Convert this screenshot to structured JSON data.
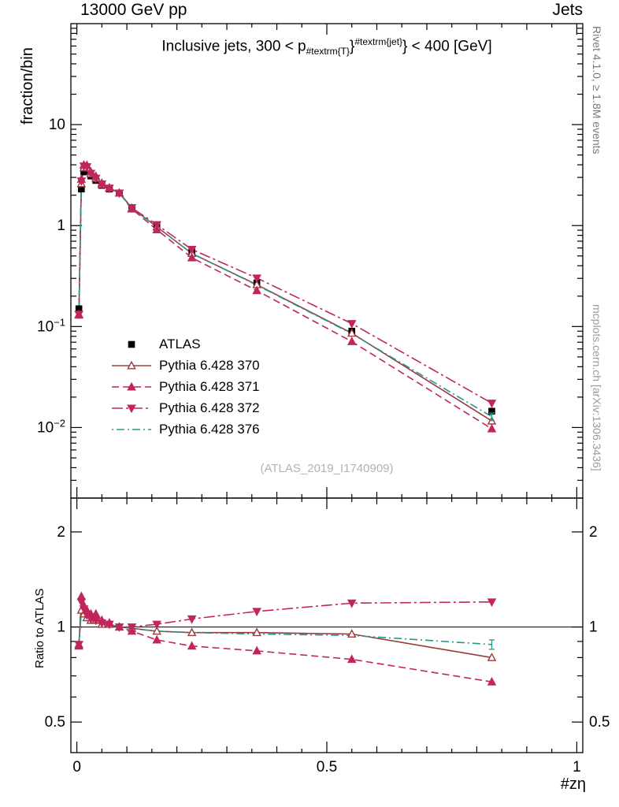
{
  "header": {
    "left": "13000 GeV pp",
    "right": "Jets"
  },
  "title": {
    "prefix": "Inclusive jets, 300 < p",
    "sub": "#textrm{T}",
    "mid": "}",
    "sup": "#textrm{jet}",
    "suffix": "} < 400 [GeV]"
  },
  "side": {
    "rivet": "Rivet 4.1.0, ≥ 1.8M events",
    "mcplots": "mcplots.cern.ch [arXiv:1306.3436]"
  },
  "watermark": "(ATLAS_2019_I1740909)",
  "chart_data": {
    "type": "line",
    "x": [
      0.004,
      0.009,
      0.014,
      0.02,
      0.028,
      0.038,
      0.05,
      0.065,
      0.085,
      0.11,
      0.16,
      0.23,
      0.36,
      0.55,
      0.83
    ],
    "series": [
      {
        "name": "ATLAS",
        "color": "#000000",
        "line": "none",
        "marker": "square",
        "filled": true,
        "values": [
          0.15,
          2.3,
          3.4,
          3.5,
          3.1,
          2.8,
          2.5,
          2.3,
          2.1,
          1.5,
          1.0,
          0.55,
          0.27,
          0.09,
          0.0145
        ]
      },
      {
        "name": "Pythia 6.428 370",
        "color": "#9c3a3a",
        "line": "solid",
        "marker": "triangle-up",
        "filled": false,
        "values": [
          0.132,
          2.6,
          3.74,
          3.75,
          3.26,
          2.94,
          2.55,
          2.35,
          2.1,
          1.49,
          0.97,
          0.53,
          0.26,
          0.086,
          0.0116
        ],
        "ratio": [
          0.88,
          1.13,
          1.1,
          1.07,
          1.05,
          1.05,
          1.02,
          1.02,
          1.0,
          0.99,
          0.97,
          0.96,
          0.96,
          0.95,
          0.8
        ]
      },
      {
        "name": "Pythia 6.428 371",
        "color": "#c0265c",
        "line": "dash",
        "marker": "triangle-up",
        "filled": true,
        "values": [
          0.13,
          2.88,
          3.98,
          3.96,
          3.41,
          3.08,
          2.63,
          2.37,
          2.1,
          1.46,
          0.91,
          0.48,
          0.227,
          0.071,
          0.0097
        ],
        "ratio": [
          0.87,
          1.25,
          1.17,
          1.13,
          1.1,
          1.1,
          1.05,
          1.03,
          1.0,
          0.97,
          0.91,
          0.87,
          0.84,
          0.79,
          0.67
        ]
      },
      {
        "name": "Pythia 6.428 372",
        "color": "#c0265c",
        "line": "dashdot",
        "marker": "triangle-down",
        "filled": true,
        "values": [
          0.132,
          2.76,
          3.88,
          3.82,
          3.29,
          2.94,
          2.58,
          2.35,
          2.1,
          1.5,
          1.02,
          0.58,
          0.302,
          0.107,
          0.0174
        ],
        "ratio": [
          0.88,
          1.2,
          1.14,
          1.09,
          1.06,
          1.05,
          1.03,
          1.02,
          1.0,
          1.0,
          1.02,
          1.06,
          1.12,
          1.19,
          1.2
        ]
      },
      {
        "name": "Pythia 6.428 376",
        "color": "#23998f",
        "line": "dashdotdot",
        "marker": "none",
        "filled": true,
        "values": [
          0.132,
          2.58,
          3.74,
          3.71,
          3.26,
          2.91,
          2.55,
          2.35,
          2.1,
          1.49,
          0.97,
          0.53,
          0.257,
          0.085,
          0.0128
        ],
        "ratio": [
          0.88,
          1.12,
          1.1,
          1.06,
          1.05,
          1.04,
          1.02,
          1.02,
          1.0,
          0.99,
          0.97,
          0.96,
          0.95,
          0.94,
          0.88
        ],
        "err_last": 0.0011,
        "ratio_err_last": 0.03
      }
    ],
    "x_axis": {
      "lim": [
        -0.012,
        1.012
      ],
      "label": "#zη",
      "ticks": [
        {
          "v": 0,
          "t": "0"
        },
        {
          "v": 0.5,
          "t": "0.5"
        },
        {
          "v": 1,
          "t": "1"
        }
      ]
    },
    "top_axis": {
      "scale": "log",
      "lim": [
        0.002,
        100
      ],
      "label": "fraction/bin",
      "ticks": [
        {
          "v": 10,
          "t": "10"
        },
        {
          "v": 1,
          "t": "1"
        },
        {
          "v": 0.1,
          "t": "10^−1"
        },
        {
          "v": 0.01,
          "t": "10^−2"
        }
      ]
    },
    "ratio_axis": {
      "scale": "log",
      "lim": [
        0.4,
        2.56
      ],
      "label": "Ratio to ATLAS",
      "ticks": [
        {
          "v": 2,
          "t": "2"
        },
        {
          "v": 1,
          "t": "1"
        },
        {
          "v": 0.5,
          "t": "0.5"
        }
      ]
    }
  }
}
